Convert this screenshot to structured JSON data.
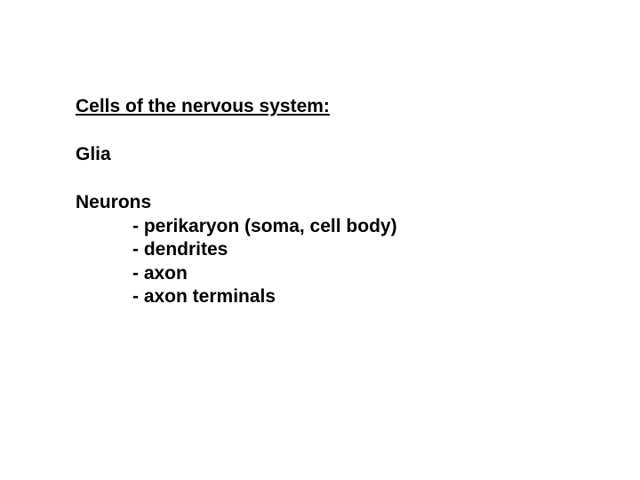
{
  "slide": {
    "title": "Cells of the nervous system:",
    "category1": "Glia",
    "category2": "Neurons",
    "items": [
      "- perikaryon (soma, cell body)",
      "- dendrites",
      "- axon",
      "- axon terminals"
    ],
    "text_color": "#000000",
    "background_color": "#ffffff",
    "font_size": 21,
    "font_weight": "bold",
    "font_family": "Arial"
  }
}
